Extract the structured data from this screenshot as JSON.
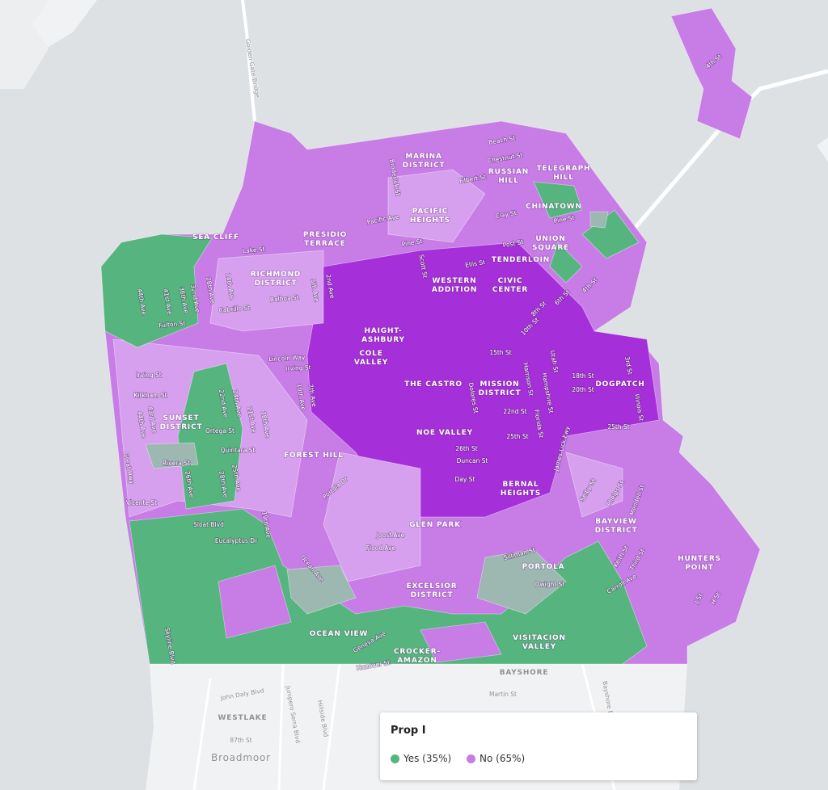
{
  "legend": {
    "title": "Prop I",
    "items": [
      {
        "label": "Yes (35%)",
        "color": "#56b57f"
      },
      {
        "label": "No (65%)",
        "color": "#c77ce6"
      }
    ]
  },
  "neighborhoods": [
    [
      "MARINA",
      "DISTRICT"
    ],
    [
      "RUSSIAN",
      "HILL"
    ],
    [
      "TELEGRAPH",
      "HILL"
    ],
    [
      "PACIFIC",
      "HEIGHTS"
    ],
    [
      "CHINATOWN"
    ],
    [
      "PRESIDIO",
      "TERRACE"
    ],
    [
      "SEA CLIFF"
    ],
    [
      "UNION",
      "SQUARE"
    ],
    [
      "TENDERLOIN"
    ],
    [
      "RICHMOND",
      "DISTRICT"
    ],
    [
      "WESTERN",
      "ADDITION"
    ],
    [
      "CIVIC",
      "CENTER"
    ],
    [
      "HAIGHT-",
      "ASHBURY"
    ],
    [
      "COLE",
      "VALLEY"
    ],
    [
      "THE CASTRO"
    ],
    [
      "MISSION",
      "DISTRICT"
    ],
    [
      "DOGPATCH"
    ],
    [
      "SUNSET",
      "DISTRICT"
    ],
    [
      "NOE VALLEY"
    ],
    [
      "FOREST HILL"
    ],
    [
      "BERNAL",
      "HEIGHTS"
    ],
    [
      "GLEN PARK"
    ],
    [
      "BAYVIEW",
      "DISTRICT"
    ],
    [
      "HUNTERS",
      "POINT"
    ],
    [
      "PORTOLA"
    ],
    [
      "EXCELSIOR",
      "DISTRICT"
    ],
    [
      "OCEAN VIEW"
    ],
    [
      "VISITACION",
      "VALLEY"
    ],
    [
      "CROCKER-",
      "AMAZON"
    ],
    [
      "BAYSHORE"
    ],
    [
      "WESTLAKE"
    ],
    [
      "Broadmoor"
    ]
  ],
  "streets": [
    "Beach St",
    "Chestnut St",
    "Filbert St",
    "Broderick St",
    "Clay St",
    "Pine St",
    "Pine St",
    "Pacific Ave",
    "Post St",
    "Ellis St",
    "Scott St",
    "Lake St",
    "Balboa St",
    "Cabrillo St",
    "Fulton St",
    "2nd Ave",
    "5th Ave",
    "7th Ave",
    "10th Ave",
    "14th Ave",
    "28th Ave",
    "32nd Ave",
    "36th Ave",
    "41st Ave",
    "44th Ave",
    "4th St",
    "6th St",
    "8th St",
    "10th St",
    "15th St",
    "18th St",
    "20th St",
    "22nd St",
    "25th St",
    "25th St",
    "26th St",
    "3rd St",
    "Illinois St",
    "Utah St",
    "Harrison St",
    "Hampshire St",
    "Florida St",
    "Dolores St",
    "Duncan St",
    "Day St",
    "James Lick Fwy",
    "Lincoln Way",
    "Irving St",
    "Irving St",
    "Kirkham St",
    "Ortega St",
    "Quintara St",
    "Rivera St",
    "Vicente St",
    "Sloat Blvd",
    "Eucalyptus Dr",
    "19th Ave",
    "Great Hwy",
    "Skyline Blvd",
    "Portola Dr",
    "Joost Ave",
    "Flood Ave",
    "Ocean Ave",
    "Silliman St",
    "Dwight St",
    "Keith St",
    "Third St",
    "Carroll Ave",
    "Mendell St",
    "Phelps St",
    "Selby St",
    "J St",
    "H St",
    "Hanover St",
    "Geneva Ave",
    "John Daly Blvd",
    "87th St",
    "Junipero Serra Blvd",
    "Hillside Blvd",
    "Golden Gate Bridge",
    "Martin St",
    "Bayshore Blvd",
    "4th St",
    "18th Ave",
    "21st Ave",
    "22nd Ave",
    "24th Ave",
    "25th Ave",
    "26th Ave",
    "28th Ave",
    "43rd Ave",
    "44th Ave"
  ]
}
